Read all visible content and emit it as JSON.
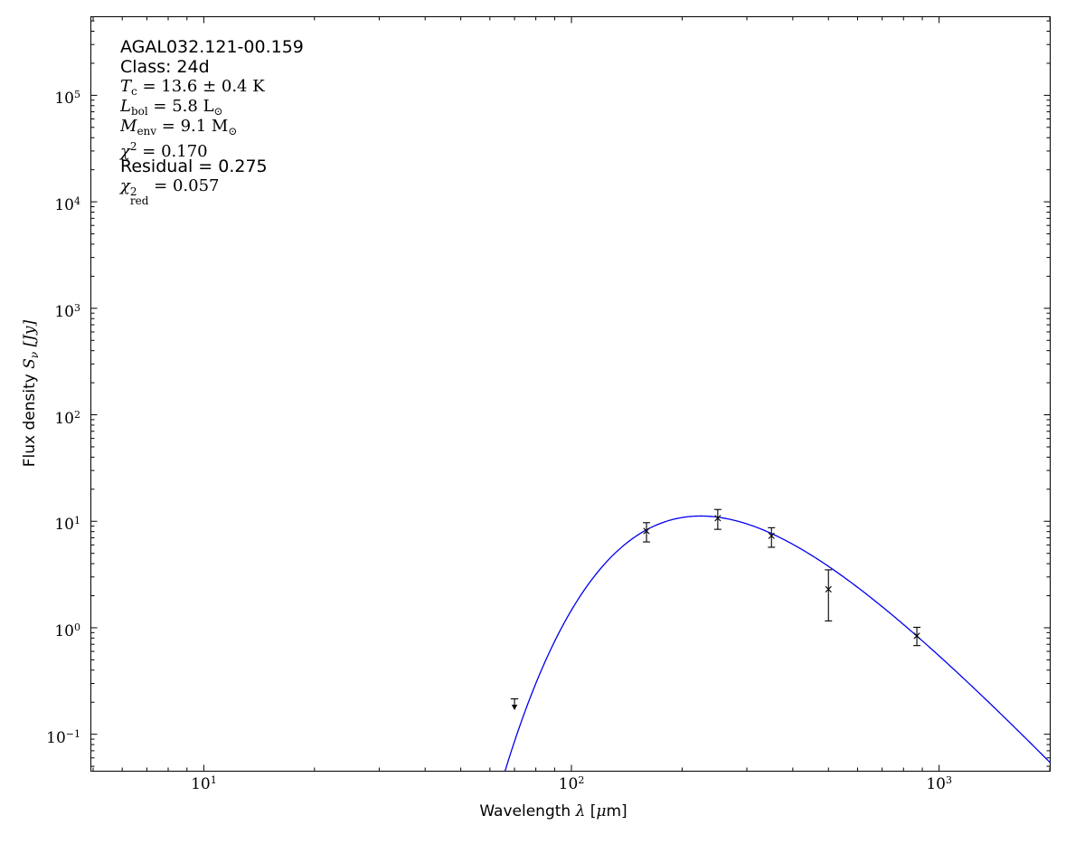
{
  "figure": {
    "background": "#ffffff",
    "frame_color": "#000000",
    "curve_color": "#0000ee",
    "marker_color": "#000000"
  },
  "annotation": {
    "source": "AGAL032.121-00.159",
    "class_line": "Class: 24d",
    "tc": {
      "var": "T",
      "sub": "c",
      "eq": " = 13.6 ± 0.4 ",
      "unit": "K"
    },
    "lbol": {
      "var": "L",
      "sub": "bol",
      "eq": " = 5.8 ",
      "unit": "L",
      "unit_sub": "⊙"
    },
    "menv": {
      "var": "M",
      "sub": "env",
      "eq": " = 9.1 ",
      "unit": "M",
      "unit_sub": "⊙"
    },
    "chi2": {
      "var": "χ",
      "sup": "2",
      "eq": " = 0.170"
    },
    "residual": "Residual = 0.275",
    "chi2red": {
      "var": "χ",
      "sup": "2",
      "sub": "red",
      "eq": " = 0.057"
    }
  },
  "x_axis": {
    "label": {
      "text": "Wavelength ",
      "lambda": "λ",
      "open": " [",
      "mu": "μ",
      "close": "m]"
    }
  },
  "y_axis": {
    "label": {
      "text": "Flux density ",
      "var": "S",
      "sub": "ν",
      "unit": " [Jy]"
    }
  },
  "chart_data": {
    "type": "line",
    "title": "",
    "xlabel": "Wavelength λ [μm]",
    "ylabel": "Flux density S_ν [Jy]",
    "x_scale": "log",
    "y_scale": "log",
    "xlim": [
      4.93,
      2005
    ],
    "ylim": [
      0.045,
      547000
    ],
    "grid": false,
    "legend": "none",
    "tick_base": "10",
    "x_ticks": [
      {
        "value": 10,
        "exp": "1"
      },
      {
        "value": 100,
        "exp": "2"
      },
      {
        "value": 1000,
        "exp": "3"
      }
    ],
    "y_ticks": [
      {
        "value": 0.1,
        "exp": "−1"
      },
      {
        "value": 1,
        "exp": "0"
      },
      {
        "value": 10,
        "exp": "1"
      },
      {
        "value": 100,
        "exp": "2"
      },
      {
        "value": 1000,
        "exp": "3"
      },
      {
        "value": 10000,
        "exp": "4"
      },
      {
        "value": 100000,
        "exp": "5"
      }
    ],
    "points": [
      {
        "wavelength_um": 70,
        "flux_jy": 0.215,
        "upper_limit": true
      },
      {
        "wavelength_um": 160,
        "flux_jy": 8.1,
        "flux_lo_jy": 6.4,
        "flux_hi_jy": 9.7
      },
      {
        "wavelength_um": 250,
        "flux_jy": 10.7,
        "flux_lo_jy": 8.4,
        "flux_hi_jy": 12.9
      },
      {
        "wavelength_um": 350,
        "flux_jy": 7.3,
        "flux_lo_jy": 5.7,
        "flux_hi_jy": 8.7
      },
      {
        "wavelength_um": 500,
        "flux_jy": 2.3,
        "flux_lo_jy": 1.16,
        "flux_hi_jy": 3.5
      },
      {
        "wavelength_um": 870,
        "flux_jy": 0.84,
        "flux_lo_jy": 0.68,
        "flux_hi_jy": 1.01
      }
    ],
    "fit_curve": {
      "model": "greybody",
      "T_K": 13.6,
      "beta": 1.75,
      "peak_flux_jy": 11.2,
      "lambda_range_um": [
        55,
        2005
      ]
    }
  }
}
